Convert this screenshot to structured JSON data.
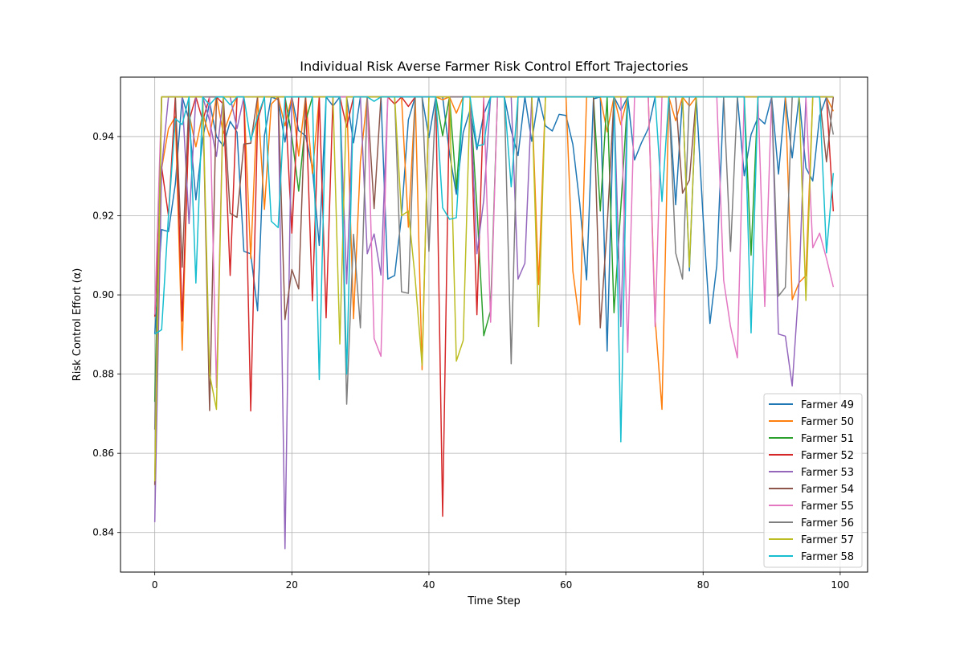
{
  "chart_data": {
    "type": "line",
    "title": "Individual Risk Averse Farmer Risk Control Effort Trajectories",
    "xlabel": "Time Step",
    "ylabel": "Risk Control Effort (α)",
    "xlim": [
      -5,
      104
    ],
    "ylim": [
      0.83,
      0.955
    ],
    "x_ticks": [
      0,
      20,
      40,
      60,
      80,
      100
    ],
    "y_ticks": [
      0.84,
      0.86,
      0.88,
      0.9,
      0.92,
      0.94
    ],
    "y_tick_labels": [
      "0.84",
      "0.86",
      "0.88",
      "0.90",
      "0.92",
      "0.94"
    ],
    "grid": true,
    "legend_position": "lower right",
    "x_start": 0,
    "x_end": 99,
    "series": [
      {
        "name": "Farmer 49",
        "color": "#1f77b4",
        "values": [
          0.8901,
          0.9165,
          0.916,
          0.928,
          0.95,
          0.9442,
          0.924,
          0.9395,
          0.9487,
          0.94,
          0.9376,
          0.9438,
          0.9411,
          0.911,
          0.9104,
          0.896,
          0.9402,
          0.95,
          0.9493,
          0.9386,
          0.95,
          0.9415,
          0.9402,
          0.9319,
          0.9125,
          0.95,
          0.9477,
          0.95,
          0.95,
          0.9384,
          0.95,
          0.95,
          0.95,
          0.95,
          0.904,
          0.9049,
          0.92,
          0.9442,
          0.95,
          0.95,
          0.9397,
          0.95,
          0.95,
          0.9357,
          0.9254,
          0.941,
          0.9467,
          0.9367,
          0.9456,
          0.95,
          0.95,
          0.95,
          0.9415,
          0.9352,
          0.95,
          0.9388,
          0.95,
          0.9427,
          0.9414,
          0.9456,
          0.9453,
          0.938,
          0.9231,
          0.9038,
          0.9495,
          0.95,
          0.8858,
          0.95,
          0.9466,
          0.95,
          0.9341,
          0.9384,
          0.942,
          0.95,
          0.95,
          0.95,
          0.9228,
          0.95,
          0.9061,
          0.95,
          0.9196,
          0.8928,
          0.9075,
          0.95,
          0.95,
          0.95,
          0.9301,
          0.9405,
          0.9448,
          0.9432,
          0.95,
          0.9305,
          0.95,
          0.9346,
          0.95,
          0.9321,
          0.9288,
          0.9452,
          0.95,
          0.95
        ]
      },
      {
        "name": "Farmer 50",
        "color": "#ff7f0e",
        "values": [
          0.895,
          0.9319,
          0.942,
          0.945,
          0.886,
          0.9458,
          0.9374,
          0.9458,
          0.94,
          0.95,
          0.9408,
          0.9456,
          0.95,
          0.95,
          0.9092,
          0.95,
          0.9216,
          0.9482,
          0.95,
          0.9427,
          0.95,
          0.9351,
          0.95,
          0.9307,
          0.95,
          0.95,
          0.95,
          0.95,
          0.95,
          0.894,
          0.9337,
          0.95,
          0.95,
          0.95,
          0.95,
          0.95,
          0.95,
          0.9171,
          0.95,
          0.8811,
          0.95,
          0.95,
          0.9493,
          0.95,
          0.9459,
          0.95,
          0.95,
          0.95,
          0.95,
          0.95,
          0.95,
          0.95,
          0.95,
          0.95,
          0.95,
          0.95,
          0.9026,
          0.95,
          0.95,
          0.95,
          0.95,
          0.906,
          0.8925,
          0.95,
          0.95,
          0.95,
          0.9412,
          0.95,
          0.943,
          0.95,
          0.95,
          0.95,
          0.95,
          0.894,
          0.8711,
          0.95,
          0.944,
          0.95,
          0.9477,
          0.95,
          0.95,
          0.95,
          0.95,
          0.95,
          0.95,
          0.95,
          0.95,
          0.95,
          0.95,
          0.95,
          0.95,
          0.95,
          0.95,
          0.8988,
          0.9031,
          0.9049,
          0.95,
          0.95,
          0.95,
          0.9464
        ]
      },
      {
        "name": "Farmer 51",
        "color": "#2ca02c",
        "values": [
          0.873,
          0.95,
          0.95,
          0.95,
          0.95,
          0.95,
          0.95,
          0.95,
          0.95,
          0.95,
          0.95,
          0.95,
          0.95,
          0.95,
          0.95,
          0.95,
          0.95,
          0.95,
          0.95,
          0.95,
          0.94,
          0.9262,
          0.9438,
          0.95,
          0.95,
          0.95,
          0.95,
          0.95,
          0.95,
          0.95,
          0.95,
          0.95,
          0.95,
          0.95,
          0.95,
          0.95,
          0.95,
          0.95,
          0.95,
          0.95,
          0.95,
          0.95,
          0.9402,
          0.95,
          0.9268,
          0.95,
          0.95,
          0.922,
          0.8897,
          0.8961,
          0.95,
          0.95,
          0.95,
          0.95,
          0.95,
          0.95,
          0.95,
          0.95,
          0.95,
          0.95,
          0.95,
          0.95,
          0.95,
          0.95,
          0.95,
          0.9212,
          0.95,
          0.8955,
          0.9222,
          0.95,
          0.95,
          0.95,
          0.95,
          0.95,
          0.95,
          0.95,
          0.95,
          0.95,
          0.95,
          0.95,
          0.95,
          0.95,
          0.95,
          0.95,
          0.95,
          0.95,
          0.95,
          0.91,
          0.95,
          0.95,
          0.95,
          0.95,
          0.95,
          0.95,
          0.95,
          0.95,
          0.95,
          0.95,
          0.95,
          0.95
        ]
      },
      {
        "name": "Farmer 52",
        "color": "#d62728",
        "values": [
          0.8945,
          0.9323,
          0.92,
          0.95,
          0.8934,
          0.944,
          0.95,
          0.944,
          0.95,
          0.95,
          0.9482,
          0.9049,
          0.95,
          0.95,
          0.8707,
          0.944,
          0.95,
          0.95,
          0.95,
          0.95,
          0.9156,
          0.95,
          0.95,
          0.8985,
          0.95,
          0.8942,
          0.95,
          0.95,
          0.9424,
          0.95,
          0.95,
          0.95,
          0.95,
          0.95,
          0.95,
          0.9482,
          0.95,
          0.9476,
          0.95,
          0.95,
          0.95,
          0.95,
          0.8441,
          0.95,
          0.95,
          0.95,
          0.95,
          0.895,
          0.95,
          0.95,
          0.95,
          0.95,
          0.95,
          0.95,
          0.95,
          0.95,
          0.95,
          0.95,
          0.95,
          0.95,
          0.95,
          0.95,
          0.95,
          0.95,
          0.95,
          0.95,
          0.95,
          0.95,
          0.95,
          0.95,
          0.95,
          0.95,
          0.95,
          0.95,
          0.95,
          0.95,
          0.95,
          0.95,
          0.95,
          0.95,
          0.95,
          0.95,
          0.95,
          0.95,
          0.95,
          0.95,
          0.95,
          0.95,
          0.95,
          0.95,
          0.95,
          0.95,
          0.95,
          0.95,
          0.95,
          0.95,
          0.95,
          0.95,
          0.95,
          0.9211
        ]
      },
      {
        "name": "Farmer 53",
        "color": "#9467bd",
        "values": [
          0.8426,
          0.932,
          0.95,
          0.95,
          0.95,
          0.918,
          0.95,
          0.95,
          0.944,
          0.935,
          0.95,
          0.95,
          0.942,
          0.95,
          0.95,
          0.95,
          0.95,
          0.95,
          0.95,
          0.8359,
          0.95,
          0.95,
          0.95,
          0.95,
          0.95,
          0.95,
          0.95,
          0.95,
          0.9028,
          0.95,
          0.95,
          0.9104,
          0.9154,
          0.905,
          0.95,
          0.95,
          0.95,
          0.95,
          0.95,
          0.95,
          0.95,
          0.95,
          0.95,
          0.95,
          0.95,
          0.95,
          0.95,
          0.9104,
          0.924,
          0.95,
          0.95,
          0.95,
          0.95,
          0.904,
          0.908,
          0.95,
          0.95,
          0.95,
          0.95,
          0.95,
          0.95,
          0.95,
          0.95,
          0.95,
          0.95,
          0.95,
          0.95,
          0.95,
          0.892,
          0.95,
          0.95,
          0.95,
          0.95,
          0.95,
          0.95,
          0.95,
          0.95,
          0.95,
          0.95,
          0.95,
          0.95,
          0.95,
          0.95,
          0.95,
          0.95,
          0.95,
          0.95,
          0.95,
          0.95,
          0.95,
          0.95,
          0.8901,
          0.8896,
          0.877,
          0.903,
          0.95,
          0.95,
          0.95,
          0.95,
          0.95
        ]
      },
      {
        "name": "Farmer 54",
        "color": "#8c564b",
        "values": [
          0.852,
          0.95,
          0.95,
          0.95,
          0.907,
          0.95,
          0.95,
          0.95,
          0.8708,
          0.95,
          0.95,
          0.9206,
          0.9196,
          0.9381,
          0.9383,
          0.95,
          0.95,
          0.95,
          0.95,
          0.8938,
          0.9064,
          0.9015,
          0.95,
          0.95,
          0.95,
          0.95,
          0.95,
          0.95,
          0.95,
          0.95,
          0.95,
          0.95,
          0.9218,
          0.95,
          0.95,
          0.95,
          0.95,
          0.95,
          0.95,
          0.95,
          0.95,
          0.95,
          0.95,
          0.95,
          0.95,
          0.95,
          0.95,
          0.95,
          0.95,
          0.95,
          0.95,
          0.95,
          0.95,
          0.95,
          0.95,
          0.95,
          0.95,
          0.95,
          0.95,
          0.95,
          0.95,
          0.95,
          0.95,
          0.95,
          0.95,
          0.8917,
          0.9172,
          0.95,
          0.95,
          0.95,
          0.95,
          0.95,
          0.95,
          0.95,
          0.95,
          0.95,
          0.95,
          0.9257,
          0.929,
          0.95,
          0.95,
          0.95,
          0.95,
          0.95,
          0.95,
          0.95,
          0.95,
          0.95,
          0.95,
          0.95,
          0.95,
          0.95,
          0.95,
          0.95,
          0.95,
          0.95,
          0.95,
          0.95,
          0.9336,
          0.95
        ]
      },
      {
        "name": "Farmer 55",
        "color": "#e377c2",
        "values": [
          0.895,
          0.95,
          0.95,
          0.95,
          0.95,
          0.95,
          0.95,
          0.95,
          0.95,
          0.8766,
          0.95,
          0.95,
          0.95,
          0.95,
          0.95,
          0.95,
          0.95,
          0.95,
          0.95,
          0.95,
          0.95,
          0.95,
          0.95,
          0.95,
          0.95,
          0.95,
          0.95,
          0.95,
          0.95,
          0.95,
          0.95,
          0.95,
          0.889,
          0.8845,
          0.95,
          0.95,
          0.95,
          0.95,
          0.95,
          0.95,
          0.95,
          0.95,
          0.95,
          0.95,
          0.95,
          0.95,
          0.95,
          0.95,
          0.95,
          0.8931,
          0.95,
          0.95,
          0.95,
          0.95,
          0.95,
          0.95,
          0.95,
          0.95,
          0.95,
          0.95,
          0.95,
          0.95,
          0.95,
          0.95,
          0.95,
          0.95,
          0.95,
          0.95,
          0.95,
          0.8855,
          0.95,
          0.95,
          0.95,
          0.892,
          0.95,
          0.95,
          0.95,
          0.95,
          0.95,
          0.95,
          0.95,
          0.95,
          0.95,
          0.9037,
          0.892,
          0.8841,
          0.95,
          0.95,
          0.95,
          0.8971,
          0.95,
          0.95,
          0.95,
          0.95,
          0.95,
          0.95,
          0.9119,
          0.9156,
          0.9092,
          0.902
        ]
      },
      {
        "name": "Farmer 56",
        "color": "#7f7f7f",
        "values": [
          0.866,
          0.95,
          0.95,
          0.95,
          0.95,
          0.95,
          0.95,
          0.95,
          0.95,
          0.95,
          0.95,
          0.95,
          0.95,
          0.95,
          0.95,
          0.95,
          0.95,
          0.95,
          0.95,
          0.95,
          0.95,
          0.95,
          0.95,
          0.95,
          0.95,
          0.95,
          0.95,
          0.95,
          0.8724,
          0.9153,
          0.8917,
          0.95,
          0.95,
          0.95,
          0.95,
          0.95,
          0.9008,
          0.9004,
          0.95,
          0.95,
          0.911,
          0.95,
          0.95,
          0.95,
          0.95,
          0.95,
          0.95,
          0.95,
          0.95,
          0.95,
          0.95,
          0.95,
          0.8826,
          0.95,
          0.95,
          0.95,
          0.95,
          0.95,
          0.95,
          0.95,
          0.95,
          0.95,
          0.95,
          0.95,
          0.95,
          0.95,
          0.95,
          0.95,
          0.95,
          0.95,
          0.95,
          0.95,
          0.95,
          0.95,
          0.95,
          0.95,
          0.9106,
          0.904,
          0.95,
          0.95,
          0.95,
          0.95,
          0.95,
          0.95,
          0.911,
          0.95,
          0.95,
          0.95,
          0.95,
          0.95,
          0.95,
          0.8997,
          0.9019,
          0.95,
          0.95,
          0.95,
          0.95,
          0.95,
          0.95,
          0.9405
        ]
      },
      {
        "name": "Farmer 57",
        "color": "#bcbd22",
        "values": [
          0.8529,
          0.95,
          0.95,
          0.95,
          0.95,
          0.95,
          0.95,
          0.95,
          0.88,
          0.8711,
          0.95,
          0.95,
          0.95,
          0.95,
          0.95,
          0.95,
          0.95,
          0.95,
          0.95,
          0.95,
          0.95,
          0.95,
          0.95,
          0.95,
          0.95,
          0.95,
          0.95,
          0.8876,
          0.95,
          0.95,
          0.95,
          0.95,
          0.95,
          0.95,
          0.95,
          0.95,
          0.92,
          0.9212,
          0.904,
          0.8822,
          0.95,
          0.95,
          0.95,
          0.95,
          0.8833,
          0.8885,
          0.95,
          0.95,
          0.95,
          0.95,
          0.95,
          0.95,
          0.95,
          0.95,
          0.95,
          0.95,
          0.892,
          0.95,
          0.95,
          0.95,
          0.95,
          0.95,
          0.95,
          0.95,
          0.95,
          0.95,
          0.95,
          0.95,
          0.95,
          0.95,
          0.95,
          0.95,
          0.95,
          0.95,
          0.95,
          0.95,
          0.95,
          0.95,
          0.907,
          0.95,
          0.95,
          0.95,
          0.95,
          0.95,
          0.95,
          0.95,
          0.95,
          0.95,
          0.95,
          0.95,
          0.95,
          0.95,
          0.95,
          0.95,
          0.95,
          0.8986,
          0.95,
          0.95,
          0.95,
          0.95
        ]
      },
      {
        "name": "Farmer 58",
        "color": "#17becf",
        "values": [
          0.8901,
          0.8912,
          0.92,
          0.9445,
          0.943,
          0.95,
          0.903,
          0.95,
          0.948,
          0.95,
          0.95,
          0.948,
          0.95,
          0.95,
          0.939,
          0.945,
          0.95,
          0.9186,
          0.917,
          0.95,
          0.95,
          0.95,
          0.95,
          0.95,
          0.8786,
          0.95,
          0.95,
          0.95,
          0.88,
          0.95,
          0.95,
          0.95,
          0.9489,
          0.95,
          0.95,
          0.95,
          0.95,
          0.95,
          0.95,
          0.95,
          0.95,
          0.95,
          0.922,
          0.9191,
          0.9195,
          0.95,
          0.95,
          0.9376,
          0.938,
          0.95,
          0.95,
          0.95,
          0.9273,
          0.95,
          0.95,
          0.95,
          0.95,
          0.95,
          0.95,
          0.95,
          0.95,
          0.95,
          0.95,
          0.95,
          0.95,
          0.95,
          0.95,
          0.95,
          0.8629,
          0.95,
          0.95,
          0.95,
          0.95,
          0.95,
          0.9236,
          0.95,
          0.95,
          0.95,
          0.95,
          0.95,
          0.95,
          0.95,
          0.95,
          0.95,
          0.95,
          0.95,
          0.95,
          0.8904,
          0.95,
          0.95,
          0.95,
          0.95,
          0.95,
          0.95,
          0.95,
          0.95,
          0.95,
          0.95,
          0.9106,
          0.9308
        ]
      }
    ]
  }
}
